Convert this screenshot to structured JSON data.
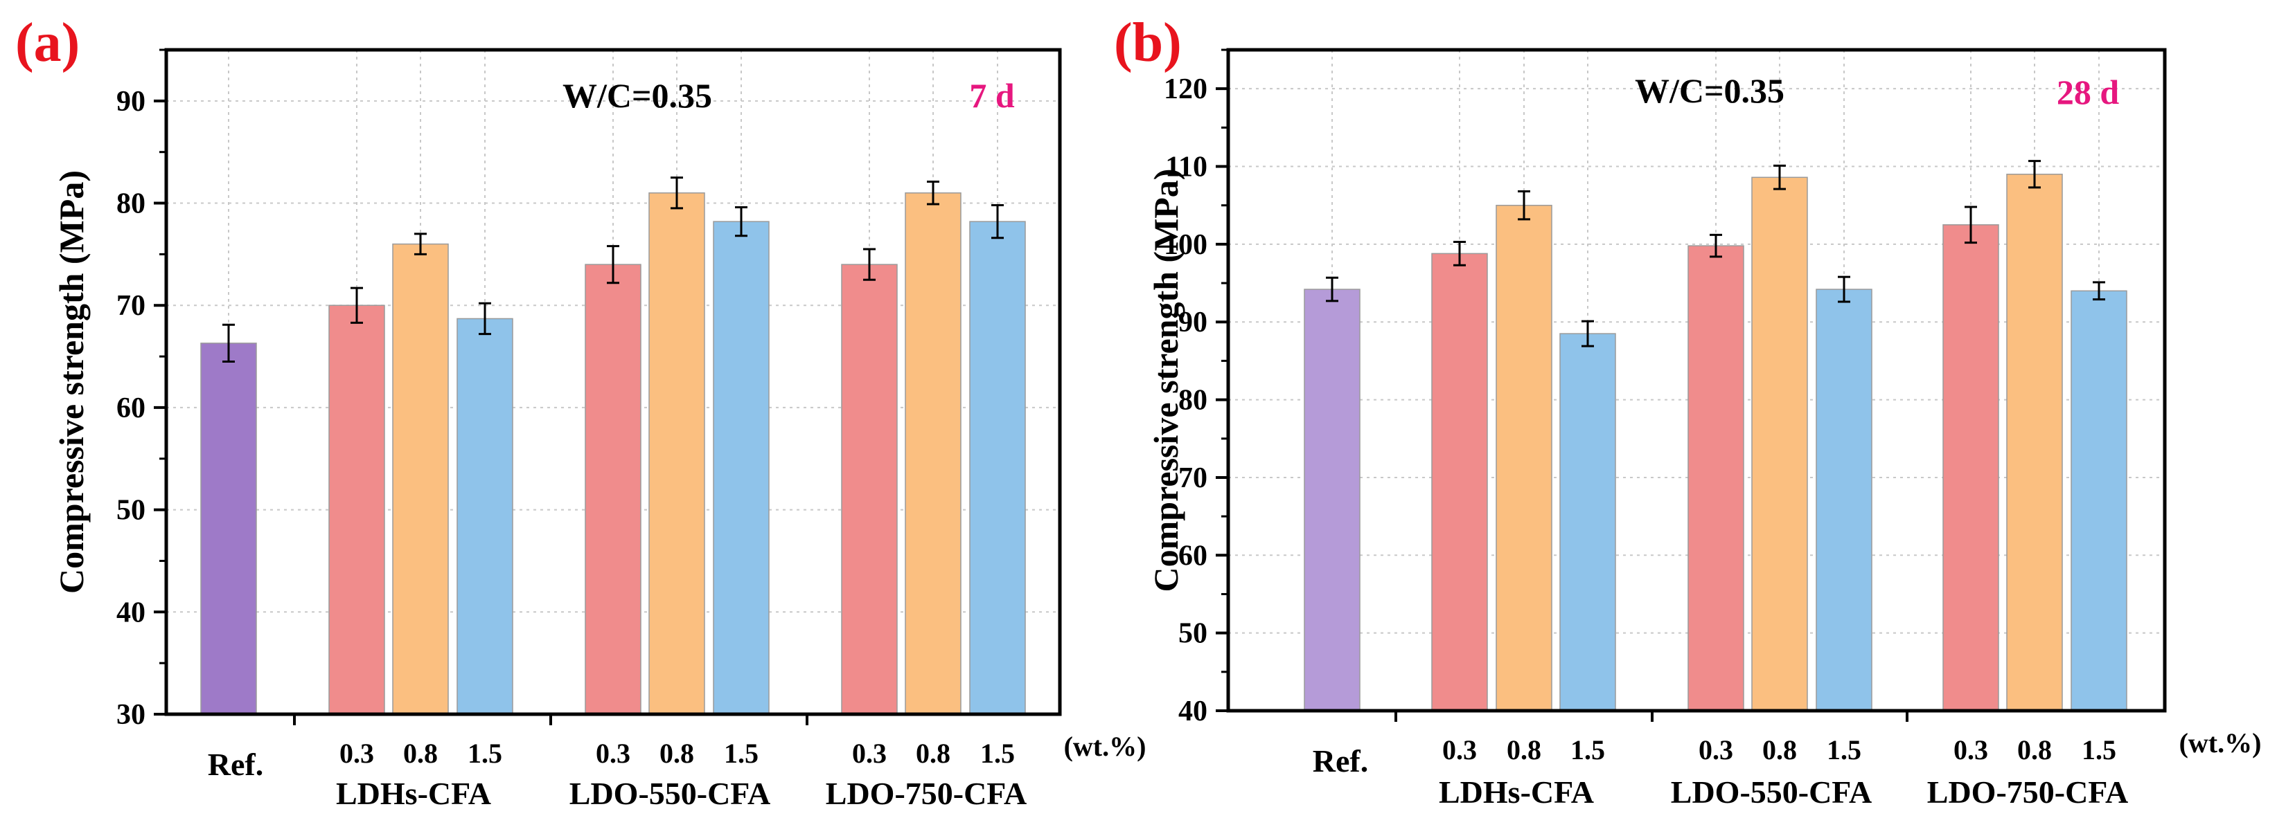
{
  "chart_data": [
    {
      "panel_label": "(a)",
      "type": "bar",
      "annotation": "W/C=0.35",
      "age_label": "7 d",
      "ylabel": "Compressive strength  (MPa)",
      "ylim": [
        30,
        95
      ],
      "yticks": [
        30,
        40,
        50,
        60,
        70,
        80,
        90
      ],
      "unit_label": "(wt.%)",
      "grid": true,
      "groups": [
        "Ref.",
        "LDHs-CFA",
        "LDO-550-CFA",
        "LDO-750-CFA"
      ],
      "bars": [
        {
          "group": "Ref.",
          "dosage": "",
          "value": 66.3,
          "error": 1.8,
          "color": "#9e7ac8"
        },
        {
          "group": "LDHs-CFA",
          "dosage": "0.3",
          "value": 70.0,
          "error": 1.7,
          "color": "#f08c8c"
        },
        {
          "group": "LDHs-CFA",
          "dosage": "0.8",
          "value": 76.0,
          "error": 1.0,
          "color": "#fbbf80"
        },
        {
          "group": "LDHs-CFA",
          "dosage": "1.5",
          "value": 68.7,
          "error": 1.5,
          "color": "#8fc3ea"
        },
        {
          "group": "LDO-550-CFA",
          "dosage": "0.3",
          "value": 74.0,
          "error": 1.8,
          "color": "#f08c8c"
        },
        {
          "group": "LDO-550-CFA",
          "dosage": "0.8",
          "value": 81.0,
          "error": 1.5,
          "color": "#fbbf80"
        },
        {
          "group": "LDO-550-CFA",
          "dosage": "1.5",
          "value": 78.2,
          "error": 1.4,
          "color": "#8fc3ea"
        },
        {
          "group": "LDO-750-CFA",
          "dosage": "0.3",
          "value": 74.0,
          "error": 1.5,
          "color": "#f08c8c"
        },
        {
          "group": "LDO-750-CFA",
          "dosage": "0.8",
          "value": 81.0,
          "error": 1.1,
          "color": "#fbbf80"
        },
        {
          "group": "LDO-750-CFA",
          "dosage": "1.5",
          "value": 78.2,
          "error": 1.6,
          "color": "#8fc3ea"
        }
      ]
    },
    {
      "panel_label": "(b)",
      "type": "bar",
      "annotation": "W/C=0.35",
      "age_label": "28 d",
      "ylabel": "Compressive strength  (MPa)",
      "ylim": [
        40,
        125
      ],
      "yticks": [
        40,
        50,
        60,
        70,
        80,
        90,
        100,
        110,
        120
      ],
      "unit_label": "(wt.%)",
      "grid": true,
      "groups": [
        "Ref.",
        "LDHs-CFA",
        "LDO-550-CFA",
        "LDO-750-CFA"
      ],
      "bars": [
        {
          "group": "Ref.",
          "dosage": "",
          "value": 94.2,
          "error": 1.5,
          "color": "#b59bd8"
        },
        {
          "group": "LDHs-CFA",
          "dosage": "0.3",
          "value": 98.8,
          "error": 1.5,
          "color": "#f08c8c"
        },
        {
          "group": "LDHs-CFA",
          "dosage": "0.8",
          "value": 105.0,
          "error": 1.8,
          "color": "#fbbf80"
        },
        {
          "group": "LDHs-CFA",
          "dosage": "1.5",
          "value": 88.5,
          "error": 1.6,
          "color": "#8fc3ea"
        },
        {
          "group": "LDO-550-CFA",
          "dosage": "0.3",
          "value": 99.8,
          "error": 1.4,
          "color": "#f08c8c"
        },
        {
          "group": "LDO-550-CFA",
          "dosage": "0.8",
          "value": 108.6,
          "error": 1.5,
          "color": "#fbbf80"
        },
        {
          "group": "LDO-550-CFA",
          "dosage": "1.5",
          "value": 94.2,
          "error": 1.6,
          "color": "#8fc3ea"
        },
        {
          "group": "LDO-750-CFA",
          "dosage": "0.3",
          "value": 102.5,
          "error": 2.3,
          "color": "#f08c8c"
        },
        {
          "group": "LDO-750-CFA",
          "dosage": "0.8",
          "value": 109.0,
          "error": 1.7,
          "color": "#fbbf80"
        },
        {
          "group": "LDO-750-CFA",
          "dosage": "1.5",
          "value": 94.0,
          "error": 1.1,
          "color": "#8fc3ea"
        }
      ]
    }
  ],
  "colors": {
    "panel_label": "#e8141e",
    "age_label": "#e6177f",
    "axis": "#000000",
    "grid": "#c8c8c8"
  }
}
